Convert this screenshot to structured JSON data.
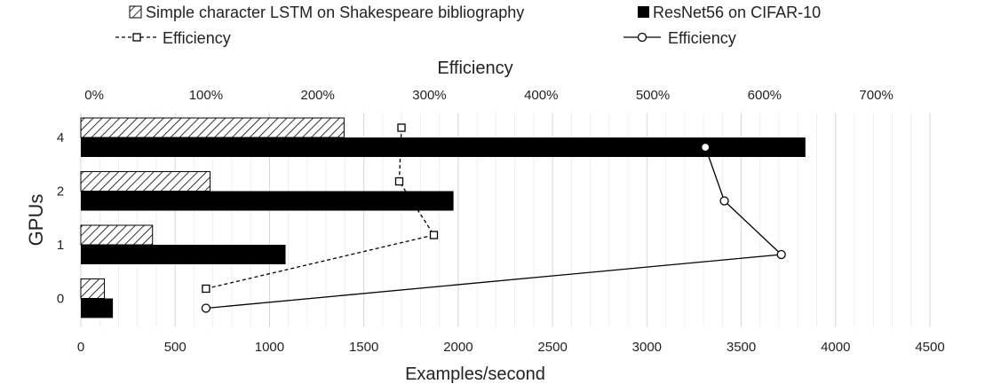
{
  "chart_data": {
    "type": "bar",
    "orientation": "horizontal",
    "categories": [
      "0",
      "1",
      "2",
      "4"
    ],
    "ylabel": "GPUs",
    "xlabel": "Examples/second",
    "x2label": "Efficiency",
    "xlim": [
      0,
      4500
    ],
    "xticks": [
      0,
      500,
      1000,
      1500,
      2000,
      2500,
      3000,
      3500,
      4000,
      4500
    ],
    "x2lim": [
      -0.12,
      7.48
    ],
    "x2ticks": [
      0,
      1,
      2,
      3,
      4,
      5,
      6,
      7
    ],
    "x2tick_labels": [
      "0%",
      "100%",
      "200%",
      "300%",
      "400%",
      "500%",
      "600%",
      "700%"
    ],
    "grid": "vertical",
    "legend_position": "top",
    "series": [
      {
        "name": "Simple character LSTM on Shakespeare bibliography",
        "kind": "bar",
        "pattern": "hatched",
        "values": [
          125,
          380,
          685,
          1395
        ]
      },
      {
        "name": "ResNet56 on CIFAR-10",
        "kind": "bar",
        "pattern": "solid",
        "color": "#000000",
        "values": [
          170,
          1085,
          1975,
          3840
        ]
      },
      {
        "name": "Efficiency",
        "kind": "line",
        "axis": "x2",
        "style": "dashed",
        "marker": "square",
        "of": "Simple character LSTM on Shakespeare bibliography",
        "values": [
          1.0,
          3.04,
          2.73,
          2.75
        ]
      },
      {
        "name": "Efficiency",
        "kind": "line",
        "axis": "x2",
        "style": "solid",
        "marker": "circle",
        "of": "ResNet56 on CIFAR-10",
        "values": [
          1.0,
          6.15,
          5.64,
          5.47
        ]
      }
    ]
  }
}
